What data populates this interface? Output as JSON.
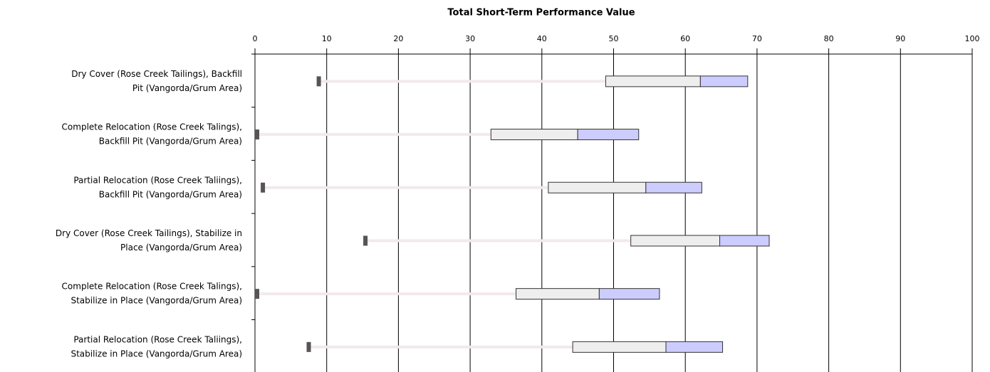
{
  "chart_data": {
    "type": "range-bar",
    "title": "Total Short-Term Performance Value",
    "categories": [
      [
        "Dry Cover (Rose Creek Tailings), Backfill",
        "Pit (Vangorda/Grum Area)"
      ],
      [
        "Complete Relocation (Rose Creek Talings),",
        "Backfill Pit (Vangorda/Grum Area)"
      ],
      [
        "Partial Relocation (Rose Creek Taliings),",
        "Backfill Pit (Vangorda/Grum Area)"
      ],
      [
        "Dry Cover (Rose Creek Tailings), Stabilize in",
        "Place (Vangorda/Grum Area)"
      ],
      [
        "Complete Relocation (Rose Creek Talings),",
        "Stabilize in Place (Vangorda/Grum Area)"
      ],
      [
        "Partial Relocation (Rose Creek Taliings),",
        "Stabilize in Place (Vangorda/Grum Area)"
      ]
    ],
    "series": [
      {
        "color": "#555555",
        "values": [
          8.6,
          0,
          0.8,
          15.1,
          0,
          7.2
        ]
      },
      {
        "color": "#f2e9ee",
        "values": [
          48.9,
          32.9,
          40.9,
          52.4,
          36.4,
          44.3
        ]
      },
      {
        "color": "#eeeeee",
        "values": [
          62.1,
          45.0,
          54.5,
          64.8,
          48.0,
          57.3
        ]
      },
      {
        "color": "#ccccff",
        "values": [
          68.7,
          53.5,
          62.3,
          71.7,
          56.4,
          65.2
        ]
      }
    ],
    "xlim": [
      0,
      100
    ],
    "xticks": [
      0,
      10,
      20,
      30,
      40,
      50,
      60,
      70,
      80,
      90,
      100
    ],
    "grid": true
  }
}
